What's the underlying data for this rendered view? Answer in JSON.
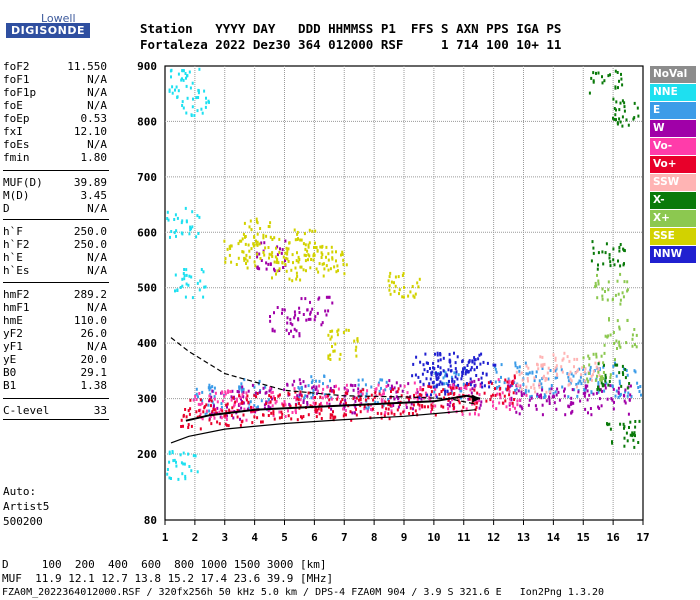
{
  "logo": {
    "top": "Lowell",
    "bottom": "DIGISONDE"
  },
  "header": {
    "row1": "Station   YYYY DAY   DDD HHMMSS P1  FFS S AXN PPS IGA PS",
    "row2": "Fortaleza 2022 Dez30 364 012000 RSF     1 714 100 10+ 11"
  },
  "params": [
    {
      "name": "foF2",
      "value": "11.550"
    },
    {
      "name": "foF1",
      "value": "N/A"
    },
    {
      "name": "foF1p",
      "value": "N/A"
    },
    {
      "name": "foE",
      "value": "N/A"
    },
    {
      "name": "foEp",
      "value": "0.53"
    },
    {
      "name": "fxI",
      "value": "12.10"
    },
    {
      "name": "foEs",
      "value": "N/A"
    },
    {
      "name": "fmin",
      "value": "1.80"
    },
    {
      "name": "MUF(D)",
      "value": "39.89"
    },
    {
      "name": "M(D)",
      "value": "3.45"
    },
    {
      "name": "D",
      "value": "N/A"
    },
    {
      "name": "h`F",
      "value": "250.0"
    },
    {
      "name": "h`F2",
      "value": "250.0"
    },
    {
      "name": "h`E",
      "value": "N/A"
    },
    {
      "name": "h`Es",
      "value": "N/A"
    },
    {
      "name": "hmF2",
      "value": "289.2"
    },
    {
      "name": "hmF1",
      "value": "N/A"
    },
    {
      "name": "hmE",
      "value": "110.0"
    },
    {
      "name": "yF2",
      "value": "26.0"
    },
    {
      "name": "yF1",
      "value": "N/A"
    },
    {
      "name": "yE",
      "value": "20.0"
    },
    {
      "name": "B0",
      "value": "29.1"
    },
    {
      "name": "B1",
      "value": "1.38"
    },
    {
      "name": "C-level",
      "value": "33"
    }
  ],
  "auto": {
    "line1": "Auto:",
    "line2": "Artist5",
    "line3": "500200"
  },
  "legend": [
    {
      "label": "NoVal",
      "color": "#8c8c8c",
      "text": "#ffffff"
    },
    {
      "label": "NNE",
      "color": "#1ee0f0",
      "text": "#ffffff"
    },
    {
      "label": "E",
      "color": "#3c9ce8",
      "text": "#ffffff"
    },
    {
      "label": "W",
      "color": "#a000a8",
      "text": "#ffffff"
    },
    {
      "label": "Vo-",
      "color": "#ff3caa",
      "text": "#ffffff"
    },
    {
      "label": "Vo+",
      "color": "#e8002a",
      "text": "#ffffff"
    },
    {
      "label": "SSW",
      "color": "#ffb4b4",
      "text": "#ffffff"
    },
    {
      "label": "X-",
      "color": "#0a7a0a",
      "text": "#ffffff"
    },
    {
      "label": "X+",
      "color": "#8cc850",
      "text": "#ffffff"
    },
    {
      "label": "SSE",
      "color": "#d2d200",
      "text": "#ffffff"
    },
    {
      "label": "NNW",
      "color": "#2020d0",
      "text": "#ffffff"
    }
  ],
  "bottom": {
    "d_line": "D     100  200  400  600  800 1000 1500 3000 [km]",
    "muf_line": "MUF  11.9 12.1 12.7 13.8 15.2 17.4 23.6 39.9 [MHz]",
    "file_line": "FZA0M_2022364012000.RSF / 320fx256h 50 kHz 5.0 km / DPS-4 FZA0M 904 / 3.9 S 321.6 E   Ion2Png 1.3.20"
  },
  "chart_data": {
    "type": "scatter",
    "x_ticks": [
      "1",
      "2",
      "3",
      "4",
      "5",
      "6",
      "7",
      "8",
      "9",
      "10",
      "11",
      "12",
      "13",
      "14",
      "15",
      "16",
      "17"
    ],
    "y_ticks": [
      "80",
      "200",
      "300",
      "400",
      "500",
      "600",
      "700",
      "800",
      "900"
    ],
    "xlim": [
      1,
      17
    ],
    "ylim": [
      80,
      900
    ],
    "grid": true,
    "legend_position": "right",
    "series": [
      {
        "name": "NoVal",
        "values": []
      },
      {
        "name": "NNE",
        "values": [
          [
            1.6,
            880
          ],
          [
            1.6,
            620
          ],
          [
            1.6,
            180
          ],
          [
            1.9,
            840
          ],
          [
            1.8,
            510
          ]
        ]
      },
      {
        "name": "E",
        "values": [
          [
            2.5,
            300
          ],
          [
            4,
            310
          ],
          [
            6,
            320
          ],
          [
            8,
            310
          ],
          [
            10.5,
            330
          ],
          [
            12.5,
            340
          ],
          [
            13.5,
            330
          ],
          [
            14.5,
            330
          ],
          [
            15.5,
            340
          ],
          [
            16.5,
            330
          ]
        ]
      },
      {
        "name": "W",
        "values": [
          [
            3,
            290
          ],
          [
            4,
            300
          ],
          [
            5.5,
            310
          ],
          [
            7,
            300
          ],
          [
            9,
            310
          ],
          [
            11,
            310
          ],
          [
            13,
            300
          ],
          [
            14,
            300
          ],
          [
            15,
            300
          ],
          [
            16,
            300
          ],
          [
            5,
            440
          ],
          [
            6,
            460
          ],
          [
            4.5,
            560
          ]
        ]
      },
      {
        "name": "Vo-",
        "values": [
          [
            2.5,
            290
          ],
          [
            3.5,
            290
          ],
          [
            5,
            295
          ],
          [
            6.5,
            300
          ],
          [
            8,
            300
          ],
          [
            9.5,
            305
          ],
          [
            11,
            300
          ],
          [
            12.5,
            310
          ]
        ]
      },
      {
        "name": "Vo+",
        "values": [
          [
            2,
            275
          ],
          [
            3,
            280
          ],
          [
            4,
            285
          ],
          [
            5,
            290
          ],
          [
            6,
            290
          ],
          [
            7,
            290
          ],
          [
            8,
            292
          ],
          [
            9,
            295
          ],
          [
            10,
            300
          ],
          [
            11,
            305
          ],
          [
            12.2,
            320
          ]
        ]
      },
      {
        "name": "SSW",
        "values": [
          [
            13.3,
            340
          ],
          [
            14,
            360
          ],
          [
            15,
            350
          ]
        ]
      },
      {
        "name": "X-",
        "values": [
          [
            15.7,
            880
          ],
          [
            15.8,
            560
          ],
          [
            16,
            340
          ],
          [
            16.3,
            240
          ],
          [
            16.5,
            820
          ]
        ]
      },
      {
        "name": "X+",
        "values": [
          [
            15.9,
            500
          ],
          [
            16.2,
            420
          ],
          [
            15.5,
            360
          ]
        ]
      },
      {
        "name": "SSE",
        "values": [
          [
            3.5,
            560
          ],
          [
            4.5,
            570
          ],
          [
            5,
            540
          ],
          [
            5.5,
            580
          ],
          [
            6,
            560
          ],
          [
            6.5,
            550
          ],
          [
            4,
            600
          ],
          [
            7,
            400
          ],
          [
            9,
            510
          ]
        ]
      },
      {
        "name": "NNW",
        "values": [
          [
            9.8,
            360
          ],
          [
            10.5,
            350
          ],
          [
            11,
            360
          ],
          [
            10,
            330
          ],
          [
            11.5,
            350
          ]
        ]
      }
    ],
    "traces": [
      {
        "name": "profile",
        "x": [
          1.7,
          2.5,
          4,
          6,
          8,
          10,
          11.1,
          11.55
        ],
        "y": [
          260,
          270,
          280,
          285,
          290,
          295,
          305,
          300
        ]
      },
      {
        "name": "upper",
        "x": [
          1.2,
          1.8,
          3,
          5,
          7,
          9,
          10.5,
          11.4
        ],
        "y": [
          410,
          385,
          345,
          315,
          305,
          303,
          300,
          290
        ]
      },
      {
        "name": "lower",
        "x": [
          1.2,
          1.8,
          3,
          5,
          7,
          9,
          10.5,
          11.4
        ],
        "y": [
          220,
          232,
          245,
          255,
          262,
          268,
          275,
          280
        ]
      }
    ]
  }
}
